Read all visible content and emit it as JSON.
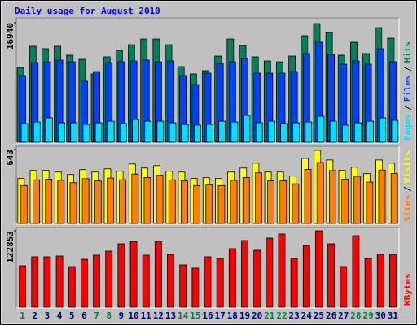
{
  "chart_data": {
    "type": "bar",
    "title": "Daily usage for August 2010",
    "legend_separator": "/",
    "categories": [
      "1",
      "2",
      "3",
      "4",
      "5",
      "6",
      "7",
      "8",
      "9",
      "10",
      "11",
      "12",
      "13",
      "14",
      "15",
      "16",
      "17",
      "18",
      "19",
      "20",
      "21",
      "22",
      "23",
      "24",
      "25",
      "26",
      "27",
      "28",
      "29",
      "30",
      "31"
    ],
    "category_color": "#000080",
    "highlight_color": "#008040",
    "highlighted": [
      0,
      6,
      7,
      13,
      14,
      20,
      21,
      27,
      28
    ],
    "panels": [
      {
        "ylim": [
          0,
          16940
        ],
        "yticks": [
          16940
        ],
        "series": [
          {
            "name": "Hits",
            "color": "#00805c",
            "values": [
              10600,
              13600,
              13250,
              13600,
              12330,
              11750,
              9680,
              12100,
              13020,
              13820,
              14630,
              14630,
              13820,
              10710,
              9680,
              10140,
              12210,
              14630,
              13710,
              12100,
              11520,
              11400,
              12210,
              15090,
              16820,
              15550,
              12330,
              14170,
              12560,
              16240,
              14750
            ]
          },
          {
            "name": "Files",
            "color": "#0040ff",
            "values": [
              9450,
              11290,
              11400,
              11640,
              11400,
              8640,
              10020,
              11290,
              11400,
              11520,
              11640,
              11400,
              11520,
              9450,
              8180,
              9790,
              11170,
              11400,
              11870,
              9790,
              9790,
              9790,
              10020,
              12560,
              14170,
              12440,
              11060,
              11520,
              11060,
              13250,
              11400
            ]
          },
          {
            "name": "Pages",
            "color": "#00e0ff",
            "values": [
              2650,
              2880,
              3460,
              2760,
              2760,
              2530,
              2760,
              2990,
              2650,
              3220,
              2990,
              2990,
              2760,
              2530,
              2420,
              2530,
              2990,
              2880,
              3800,
              2760,
              2990,
              2650,
              2760,
              2880,
              3690,
              2990,
              2420,
              2760,
              2990,
              3460,
              3110
            ]
          }
        ]
      },
      {
        "ylim": [
          0,
          643
        ],
        "yticks": [
          643
        ],
        "series": [
          {
            "name": "Visits",
            "color": "#ffff00",
            "values": [
              391,
              461,
              461,
              447,
              426,
              468,
              447,
              475,
              454,
              517,
              482,
              503,
              454,
              447,
              391,
              398,
              391,
              447,
              482,
              524,
              447,
              447,
              412,
              566,
              636,
              552,
              461,
              489,
              433,
              552,
              524
            ]
          },
          {
            "name": "Sites",
            "color": "#ff8000",
            "values": [
              330,
              380,
              385,
              375,
              355,
              390,
              370,
              395,
              380,
              430,
              400,
              420,
              380,
              370,
              330,
              335,
              330,
              375,
              400,
              440,
              370,
              370,
              345,
              470,
              530,
              460,
              385,
              410,
              360,
              465,
              435
            ]
          }
        ]
      },
      {
        "ylim": [
          0,
          122853
        ],
        "yticks": [
          122853
        ],
        "series": [
          {
            "name": "KBytes",
            "color": "#ff0000",
            "values": [
              66660,
              81030,
              81030,
              82340,
              65350,
              77110,
              83650,
              90180,
              101950,
              105870,
              83650,
              105870,
              84960,
              67960,
              62740,
              81030,
              78420,
              94100,
              107170,
              91490,
              111100,
              117630,
              78420,
              99330,
              122850,
              101950,
              65350,
              115020,
              78420,
              84960,
              84960
            ]
          }
        ]
      }
    ]
  }
}
